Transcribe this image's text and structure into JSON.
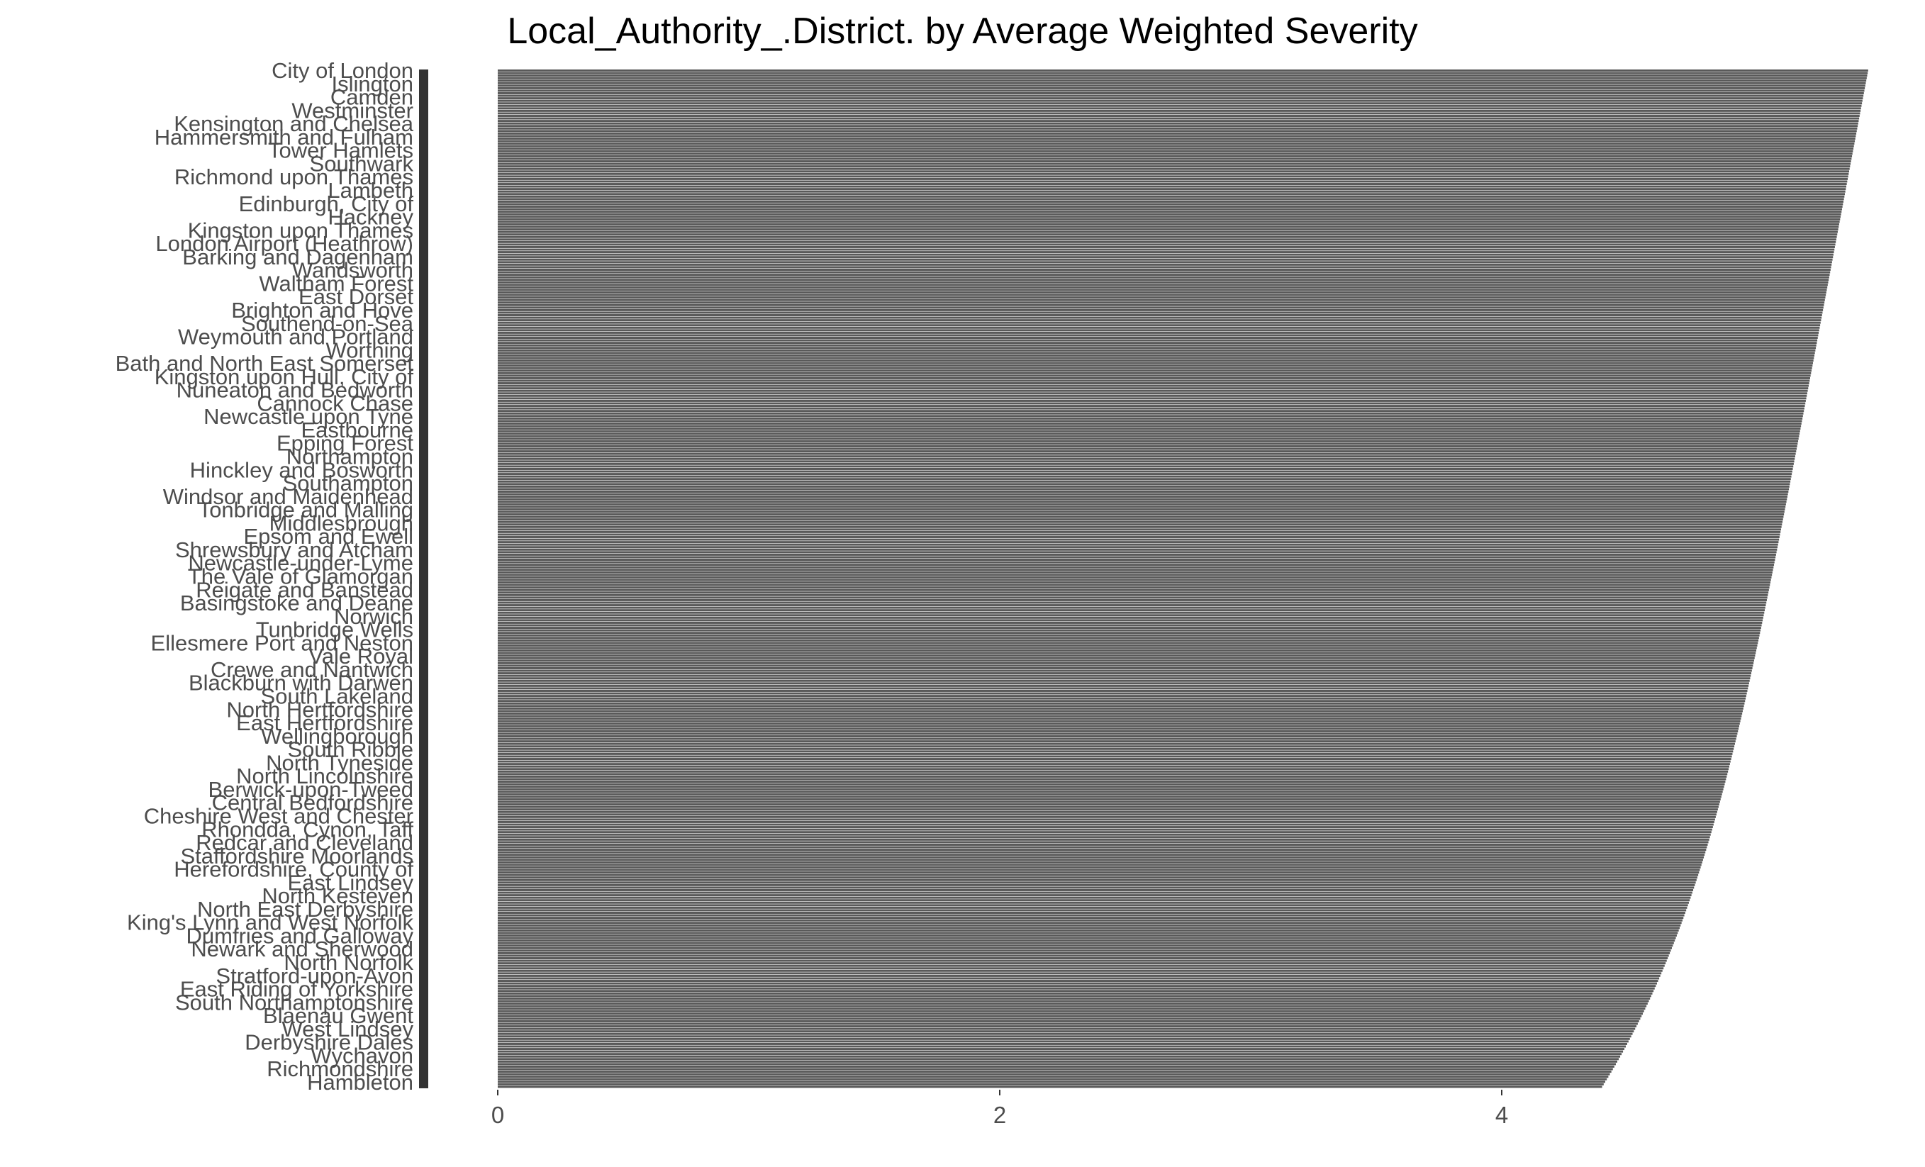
{
  "chart_data": {
    "type": "bar",
    "orientation": "horizontal",
    "title": "Local_Authority_.District. by Average Weighted Severity",
    "xlabel": "",
    "ylabel": "",
    "xlim": [
      0,
      5.6
    ],
    "x_ticks": [
      0,
      2,
      4
    ],
    "grid": false,
    "bar_color": "#595959",
    "axis_bar_color": "#333333",
    "label_color": "#4d4d4d",
    "bar_count": 404,
    "value_max": 5.46,
    "value_min": 4.4,
    "category_labels_visible": [
      "City of London",
      "Islington",
      "Camden",
      "Westminster",
      "Kensington and Chelsea",
      "Hammersmith and Fulham",
      "Tower Hamlets",
      "Southwark",
      "Richmond upon Thames",
      "Lambeth",
      "Edinburgh, City of",
      "Hackney",
      "Kingston upon Thames",
      "London Airport (Heathrow)",
      "Barking and Dagenham",
      "Wandsworth",
      "Waltham Forest",
      "East Dorset",
      "Brighton and Hove",
      "Southend-on-Sea",
      "Weymouth and Portland",
      "Worthing",
      "Bath and North East Somerset",
      "Kingston upon Hull, City of",
      "Nuneaton and Bedworth",
      "Cannock Chase",
      "Newcastle upon Tyne",
      "Eastbourne",
      "Epping Forest",
      "Northampton",
      "Hinckley and Bosworth",
      "Southampton",
      "Windsor and Maidenhead",
      "Tonbridge and Malling",
      "Middlesbrough",
      "Epsom and Ewell",
      "Shrewsbury and Atcham",
      "Newcastle-under-Lyme",
      "The Vale of Glamorgan",
      "Reigate and Banstead",
      "Basingstoke and Deane",
      "Norwich",
      "Tunbridge Wells",
      "Ellesmere Port and Neston",
      "Vale Royal",
      "Crewe and Nantwich",
      "Blackburn with Darwen",
      "South Lakeland",
      "North Hertfordshire",
      "East Hertfordshire",
      "Wellingborough",
      "South Ribble",
      "North Tyneside",
      "North Lincolnshire",
      "Berwick-upon-Tweed",
      "Central Bedfordshire",
      "Cheshire West and Chester",
      "Rhondda, Cynon, Taff",
      "Redcar and Cleveland",
      "Staffordshire Moorlands",
      "Herefordshire, County of",
      "East Lindsey",
      "North Kesteven",
      "North East Derbyshire",
      "King's Lynn and West Norfolk",
      "Dumfries and Galloway",
      "Newark and Sherwood",
      "North Norfolk",
      "Stratford-upon-Avon",
      "East Riding of Yorkshire",
      "South Northamptonshire",
      "Blaenau Gwent",
      "West Lindsey",
      "Derbyshire Dales",
      "Wychavon",
      "Richmondshire",
      "Hambleton"
    ]
  }
}
